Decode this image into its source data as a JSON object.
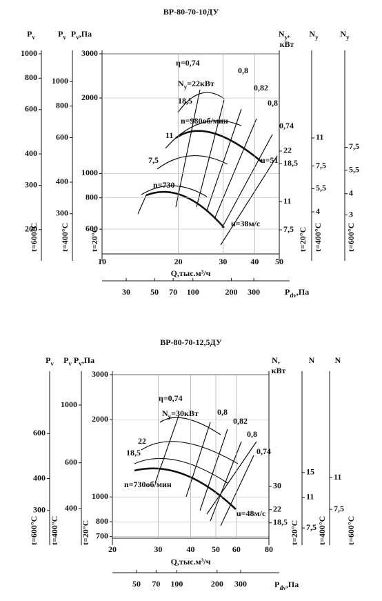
{
  "chart_data": [
    {
      "type": "nomogram",
      "title": "ВР-80-70-10ДУ",
      "grid": true,
      "x": {
        "label": "Q,тыс.м³/ч",
        "log": true,
        "xlim": [
          10,
          50
        ],
        "xticks": [
          10,
          20,
          30,
          40,
          50
        ]
      },
      "pdv": {
        "label": [
          {
            "text": "P"
          },
          {
            "text": "dv",
            "sub": true
          },
          {
            "text": ",Па"
          }
        ],
        "log": true,
        "xlim": [
          19.4,
          475
        ],
        "xticks": [
          30,
          50,
          70,
          100,
          200,
          300
        ]
      },
      "left_axes": [
        {
          "label": [
            {
              "text": "P"
            },
            {
              "text": "v",
              "sub": true
            }
          ],
          "temperature": "t=600°C",
          "log": true,
          "ylim": [
            160,
            1000
          ],
          "yticks": [
            200,
            300,
            400,
            600,
            800,
            1000
          ]
        },
        {
          "label": [
            {
              "text": "P"
            },
            {
              "text": "v",
              "sub": true
            }
          ],
          "temperature": "t=400°C",
          "log": true,
          "ylim": [
            208,
            1288
          ],
          "yticks": [
            300,
            400,
            600,
            800,
            1000
          ]
        },
        {
          "label": [
            {
              "text": "P"
            },
            {
              "text": "v",
              "sub": true
            },
            {
              "text": ",Па"
            }
          ],
          "temperature": "t=20°C",
          "log": true,
          "ylim": [
            478,
            3000
          ],
          "yticks": [
            600,
            800,
            1000,
            2000,
            3000
          ]
        }
      ],
      "right_axes": [
        {
          "label": [
            {
              "text": "N"
            },
            {
              "text": "y",
              "sub": true
            },
            {
              "text": ","
            }
          ],
          "unit": "кВт",
          "temperature": "t=20°C",
          "log": true,
          "ylim": [
            5.4,
            83
          ],
          "yticks": [
            {
              "value": 7.5,
              "label": "7,5"
            },
            11,
            {
              "value": 18.5,
              "label": "18,5"
            },
            22
          ]
        },
        {
          "label": [
            {
              "text": "N"
            },
            {
              "text": "y",
              "sub": true
            }
          ],
          "temperature": "t=400°C",
          "log": true,
          "ylim": [
            2.25,
            34.8
          ],
          "yticks": [
            4,
            {
              "value": 5.5,
              "label": "5,5"
            },
            {
              "value": 7.5,
              "label": "7,5"
            },
            11
          ]
        },
        {
          "label": [
            {
              "text": "N"
            },
            {
              "text": "y",
              "sub": true
            }
          ],
          "temperature": "t=600°C",
          "log": true,
          "ylim": [
            1.77,
            26.6
          ],
          "yticks": [
            3,
            4,
            {
              "value": 5.5,
              "label": "5,5"
            },
            {
              "value": 7.5,
              "label": "7,5"
            }
          ]
        }
      ],
      "curve_labels": [
        "η=0,74",
        "0,8",
        "0,82",
        "0,8",
        "0,74",
        [
          {
            "text": "N"
          },
          {
            "text": "y",
            "sub": true
          },
          {
            "text": "=22кВт"
          }
        ],
        "18,5",
        "n=980об/мин",
        "11",
        "7,5",
        "n=730",
        "u=51",
        "u=38м/с"
      ]
    },
    {
      "type": "nomogram",
      "title": "ВР-80-70-12,5ДУ",
      "grid": true,
      "x": {
        "label": "Q,тыс.м³/ч",
        "log": true,
        "xlim": [
          20,
          80
        ],
        "xticks": [
          20,
          30,
          40,
          50,
          60,
          80
        ]
      },
      "pdv": {
        "label": [
          {
            "text": "P"
          },
          {
            "text": "dv",
            "sub": true
          },
          {
            "text": ",Па"
          }
        ],
        "log": true,
        "xlim": [
          33,
          488
        ],
        "xticks": [
          50,
          70,
          100,
          200,
          300
        ]
      },
      "left_axes": [
        {
          "label": [
            {
              "text": "P"
            },
            {
              "text": "v",
              "sub": true
            }
          ],
          "temperature": "t=600°C",
          "log": true,
          "ylim": [
            234,
            1018
          ],
          "yticks": [
            300,
            400,
            600
          ]
        },
        {
          "label": [
            {
              "text": "P"
            },
            {
              "text": "v",
              "sub": true
            }
          ],
          "temperature": "t=400°C",
          "log": true,
          "ylim": [
            308,
            1308
          ],
          "yticks": [
            400,
            600,
            1000
          ]
        },
        {
          "label": [
            {
              "text": "P"
            },
            {
              "text": "v",
              "sub": true
            },
            {
              "text": ",Па"
            }
          ],
          "temperature": "t=20°C",
          "log": true,
          "ylim": [
            690,
            3000
          ],
          "yticks": [
            700,
            800,
            1000,
            2000,
            3000
          ]
        }
      ],
      "right_axes": [
        {
          "label": [
            {
              "text": "N,"
            }
          ],
          "unit": "кВт",
          "temperature": "t=20°C",
          "log": true,
          "ylim": [
            15.1,
            131
          ],
          "yticks": [
            {
              "value": 18.5,
              "label": "18,5"
            },
            22,
            30
          ]
        },
        {
          "label": [
            {
              "text": "N"
            }
          ],
          "temperature": "t=400°C",
          "log": true,
          "ylim": [
            6.6,
            51
          ],
          "yticks": [
            {
              "value": 7.5,
              "label": "7,5"
            },
            11,
            15
          ]
        },
        {
          "label": [
            {
              "text": "N"
            }
          ],
          "temperature": "t=600°C",
          "log": true,
          "ylim": [
            5.3,
            37.9
          ],
          "yticks": [
            {
              "value": 7.5,
              "label": "7,5"
            },
            11
          ]
        }
      ],
      "curve_labels": [
        "η=0,74",
        [
          {
            "text": "N"
          },
          {
            "text": "y",
            "sub": true
          },
          {
            "text": "=30кВт"
          }
        ],
        "0,8",
        "0,82",
        "0,8",
        "0,74",
        "22",
        "18,5",
        "n=730об/мин",
        "u=48м/с"
      ]
    }
  ]
}
